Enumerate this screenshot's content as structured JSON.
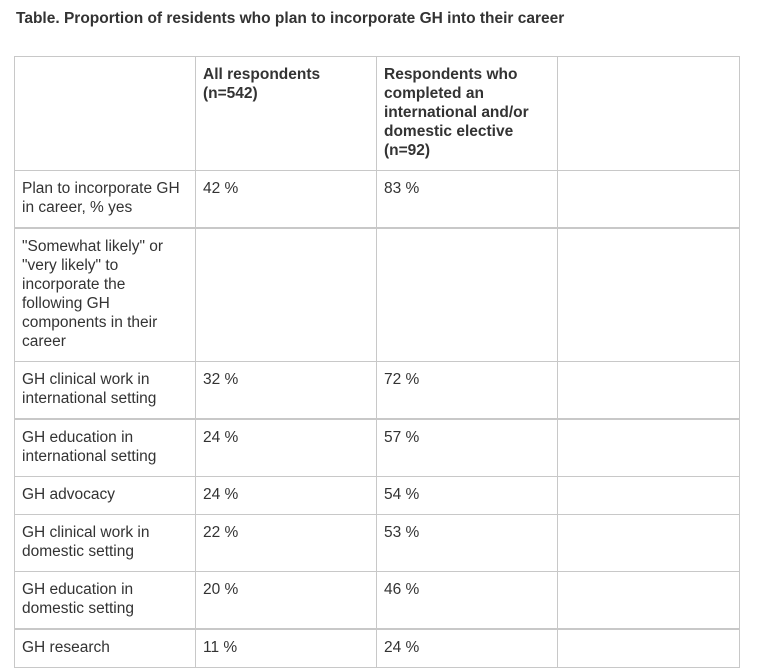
{
  "caption": "Table. Proportion of residents who plan to incorporate GH into their career",
  "table": {
    "headers": [
      "",
      "All respondents (n=542)",
      "Respondents who completed an international and/or domestic elective (n=92)",
      ""
    ],
    "rows": [
      {
        "label": "Plan to incorporate GH in career, % yes",
        "all": "42 %",
        "elective": "83 %",
        "extra": ""
      },
      {
        "label": "\"Somewhat likely\" or \"very likely\" to incorporate the following GH components in their career",
        "all": "",
        "elective": "",
        "extra": ""
      },
      {
        "label": "GH clinical work in international setting",
        "all": "32 %",
        "elective": "72 %",
        "extra": ""
      },
      {
        "label": "GH education in international setting",
        "all": "24 %",
        "elective": "57 %",
        "extra": ""
      },
      {
        "label": "GH advocacy",
        "all": "24 %",
        "elective": "54 %",
        "extra": ""
      },
      {
        "label": "GH clinical work in domestic setting",
        "all": "22 %",
        "elective": "53 %",
        "extra": ""
      },
      {
        "label": "GH education in domestic setting",
        "all": "20 %",
        "elective": "46 %",
        "extra": ""
      },
      {
        "label": "GH research",
        "all": "11 %",
        "elective": "24 %",
        "extra": ""
      }
    ]
  }
}
